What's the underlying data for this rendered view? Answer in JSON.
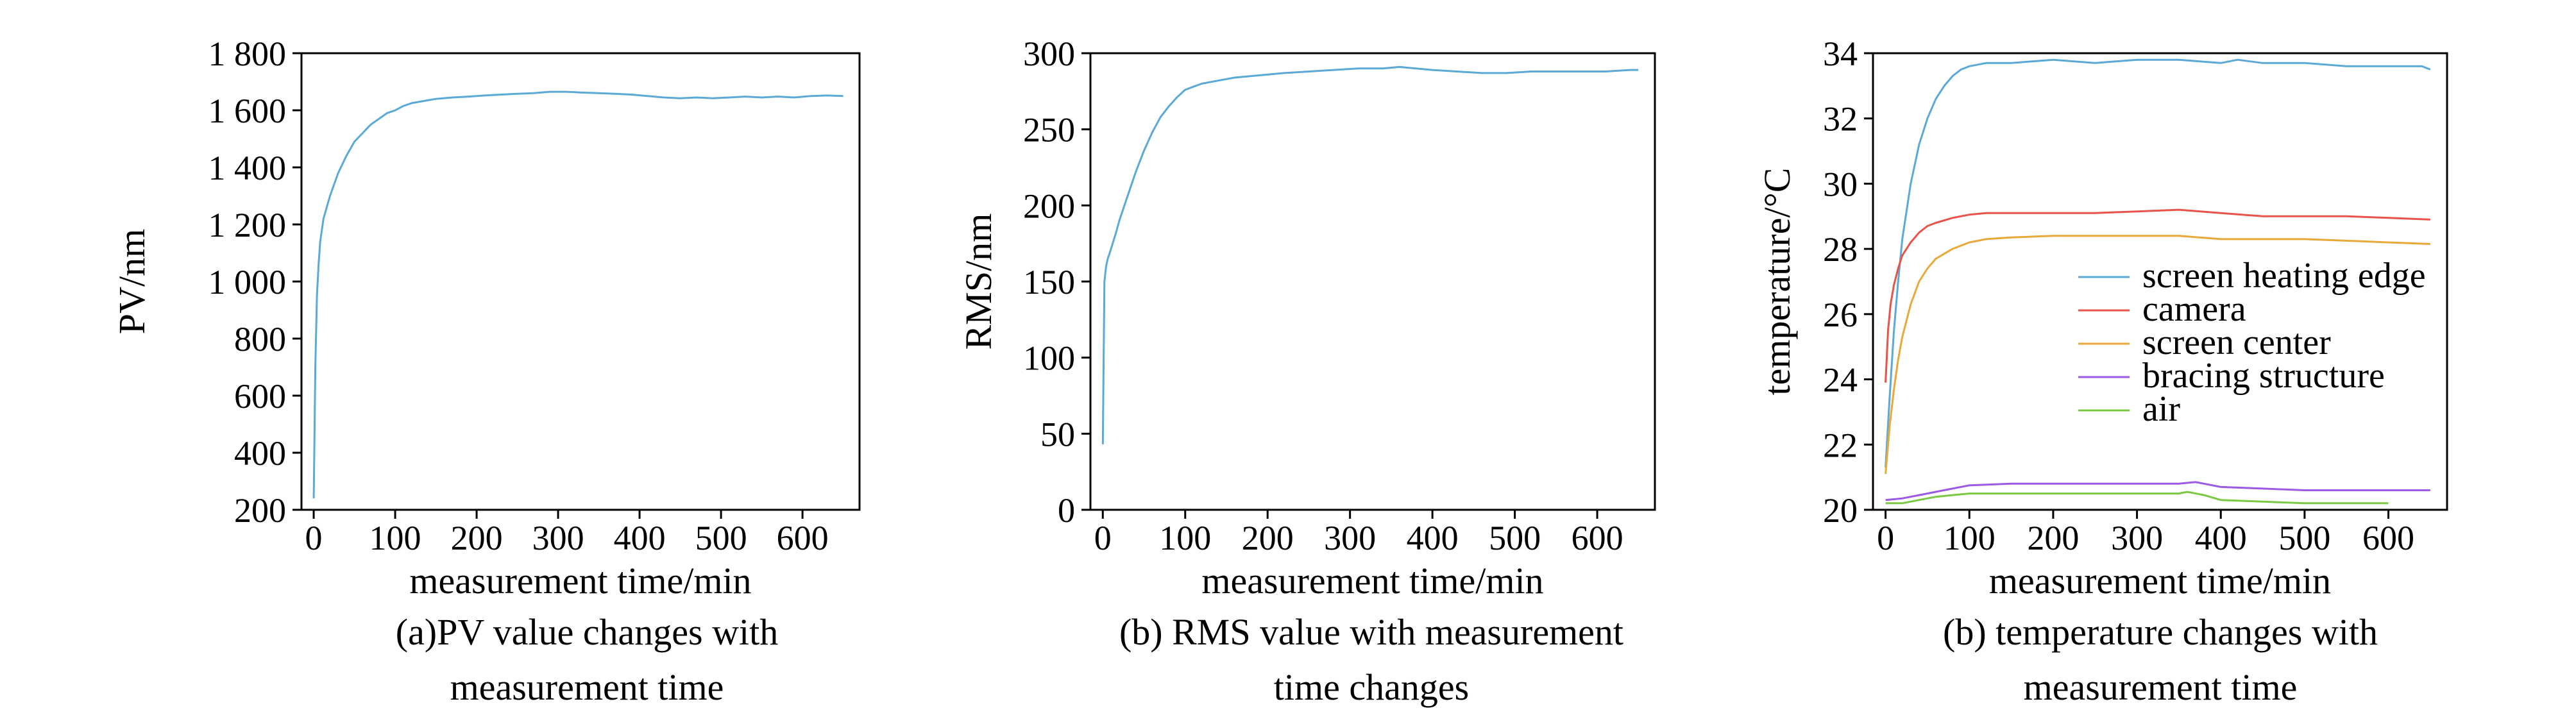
{
  "chart_data": [
    {
      "type": "line",
      "xlabel": "measurement time/min",
      "ylabel": "PV/nm",
      "caption": [
        "(a)PV value changes with",
        "measurement time"
      ],
      "xlim": [
        -15,
        670
      ],
      "ylim": [
        200,
        1800
      ],
      "xticks": [
        0,
        100,
        200,
        300,
        400,
        500,
        600
      ],
      "yticks": [
        200,
        400,
        600,
        800,
        1000,
        1200,
        1400,
        1600,
        1800
      ],
      "yticklabels": [
        "200",
        "400",
        "600",
        "800",
        "1 000",
        "1 200",
        "1 400",
        "1 600",
        "1 800"
      ],
      "series": [
        {
          "color": "#5aa9d6",
          "x": [
            0,
            2,
            4,
            6,
            8,
            12,
            16,
            20,
            25,
            30,
            35,
            40,
            50,
            60,
            70,
            80,
            90,
            100,
            110,
            120,
            130,
            140,
            150,
            170,
            190,
            210,
            230,
            250,
            270,
            290,
            310,
            330,
            350,
            370,
            390,
            410,
            430,
            450,
            470,
            490,
            510,
            530,
            550,
            570,
            590,
            610,
            630,
            650
          ],
          "y": [
            240,
            700,
            950,
            1060,
            1140,
            1220,
            1260,
            1300,
            1340,
            1380,
            1410,
            1440,
            1490,
            1520,
            1550,
            1570,
            1590,
            1600,
            1615,
            1625,
            1630,
            1635,
            1640,
            1645,
            1648,
            1652,
            1655,
            1658,
            1660,
            1665,
            1665,
            1662,
            1660,
            1658,
            1655,
            1650,
            1645,
            1642,
            1645,
            1642,
            1645,
            1648,
            1645,
            1648,
            1645,
            1650,
            1652,
            1650
          ]
        }
      ]
    },
    {
      "type": "line",
      "xlabel": "measurement time/min",
      "ylabel": "RMS/nm",
      "caption": [
        "(b) RMS value with measurement",
        "time changes"
      ],
      "xlim": [
        -15,
        670
      ],
      "ylim": [
        0,
        300
      ],
      "xticks": [
        0,
        100,
        200,
        300,
        400,
        500,
        600
      ],
      "yticks": [
        0,
        50,
        100,
        150,
        200,
        250,
        300
      ],
      "yticklabels": [
        "0",
        "50",
        "100",
        "150",
        "200",
        "250",
        "300"
      ],
      "series": [
        {
          "color": "#5aa9d6",
          "x": [
            0,
            2,
            4,
            6,
            8,
            12,
            16,
            20,
            25,
            30,
            40,
            50,
            60,
            70,
            80,
            90,
            100,
            110,
            120,
            140,
            160,
            180,
            200,
            220,
            250,
            280,
            310,
            340,
            360,
            380,
            400,
            430,
            460,
            490,
            520,
            550,
            580,
            610,
            640,
            650
          ],
          "y": [
            43,
            150,
            160,
            165,
            168,
            175,
            182,
            190,
            198,
            206,
            222,
            236,
            248,
            258,
            265,
            271,
            276,
            278,
            280,
            282,
            284,
            285,
            286,
            287,
            288,
            289,
            290,
            290,
            291,
            290,
            289,
            288,
            287,
            287,
            288,
            288,
            288,
            288,
            289,
            289
          ]
        }
      ]
    },
    {
      "type": "line",
      "xlabel": "measurement time/min",
      "ylabel": "temperature/°C",
      "caption": [
        "(b) temperature changes with",
        "measurement time"
      ],
      "xlim": [
        -15,
        670
      ],
      "ylim": [
        20,
        34
      ],
      "xticks": [
        0,
        100,
        200,
        300,
        400,
        500,
        600
      ],
      "yticks": [
        20,
        22,
        24,
        26,
        28,
        30,
        32,
        34
      ],
      "yticklabels": [
        "20",
        "22",
        "24",
        "26",
        "28",
        "30",
        "32",
        "34"
      ],
      "legend_position": "center-right",
      "series": [
        {
          "name": "screen heating edge",
          "color": "#5aa9d6",
          "x": [
            0,
            5,
            10,
            15,
            20,
            30,
            40,
            50,
            60,
            70,
            80,
            90,
            100,
            120,
            150,
            200,
            250,
            300,
            350,
            400,
            420,
            450,
            500,
            550,
            600,
            640,
            650
          ],
          "y": [
            21.3,
            23.5,
            25.5,
            27.0,
            28.3,
            30.0,
            31.2,
            32.0,
            32.6,
            33.0,
            33.3,
            33.5,
            33.6,
            33.7,
            33.7,
            33.8,
            33.7,
            33.8,
            33.8,
            33.7,
            33.8,
            33.7,
            33.7,
            33.6,
            33.6,
            33.6,
            33.5
          ]
        },
        {
          "name": "camera",
          "color": "#e8534a",
          "x": [
            0,
            3,
            6,
            10,
            15,
            20,
            30,
            40,
            50,
            60,
            80,
            100,
            120,
            150,
            200,
            250,
            300,
            350,
            400,
            450,
            500,
            550,
            600,
            650
          ],
          "y": [
            23.9,
            25.5,
            26.3,
            26.9,
            27.4,
            27.8,
            28.2,
            28.5,
            28.7,
            28.8,
            28.95,
            29.05,
            29.1,
            29.1,
            29.1,
            29.1,
            29.15,
            29.2,
            29.1,
            29.0,
            29.0,
            29.0,
            28.95,
            28.9
          ]
        },
        {
          "name": "screen center",
          "color": "#e8a93a",
          "x": [
            0,
            5,
            10,
            15,
            20,
            30,
            40,
            50,
            60,
            80,
            100,
            120,
            150,
            200,
            250,
            300,
            350,
            400,
            450,
            500,
            550,
            600,
            650
          ],
          "y": [
            21.1,
            22.6,
            23.7,
            24.6,
            25.3,
            26.3,
            27.0,
            27.4,
            27.7,
            28.0,
            28.2,
            28.3,
            28.35,
            28.4,
            28.4,
            28.4,
            28.4,
            28.3,
            28.3,
            28.3,
            28.25,
            28.2,
            28.15
          ]
        },
        {
          "name": "bracing structure",
          "color": "#9b59e6",
          "x": [
            0,
            20,
            40,
            60,
            80,
            100,
            150,
            200,
            250,
            300,
            350,
            370,
            380,
            400,
            450,
            500,
            550,
            600,
            650
          ],
          "y": [
            20.3,
            20.35,
            20.45,
            20.55,
            20.65,
            20.75,
            20.8,
            20.8,
            20.8,
            20.8,
            20.8,
            20.85,
            20.8,
            20.7,
            20.65,
            20.6,
            20.6,
            20.6,
            20.6
          ]
        },
        {
          "name": "air",
          "color": "#7ac943",
          "x": [
            0,
            20,
            40,
            60,
            80,
            100,
            150,
            200,
            250,
            300,
            350,
            360,
            380,
            400,
            450,
            500,
            550,
            600
          ],
          "y": [
            20.2,
            20.2,
            20.3,
            20.4,
            20.45,
            20.5,
            20.5,
            20.5,
            20.5,
            20.5,
            20.5,
            20.55,
            20.45,
            20.3,
            20.25,
            20.2,
            20.2,
            20.2
          ]
        }
      ]
    }
  ]
}
